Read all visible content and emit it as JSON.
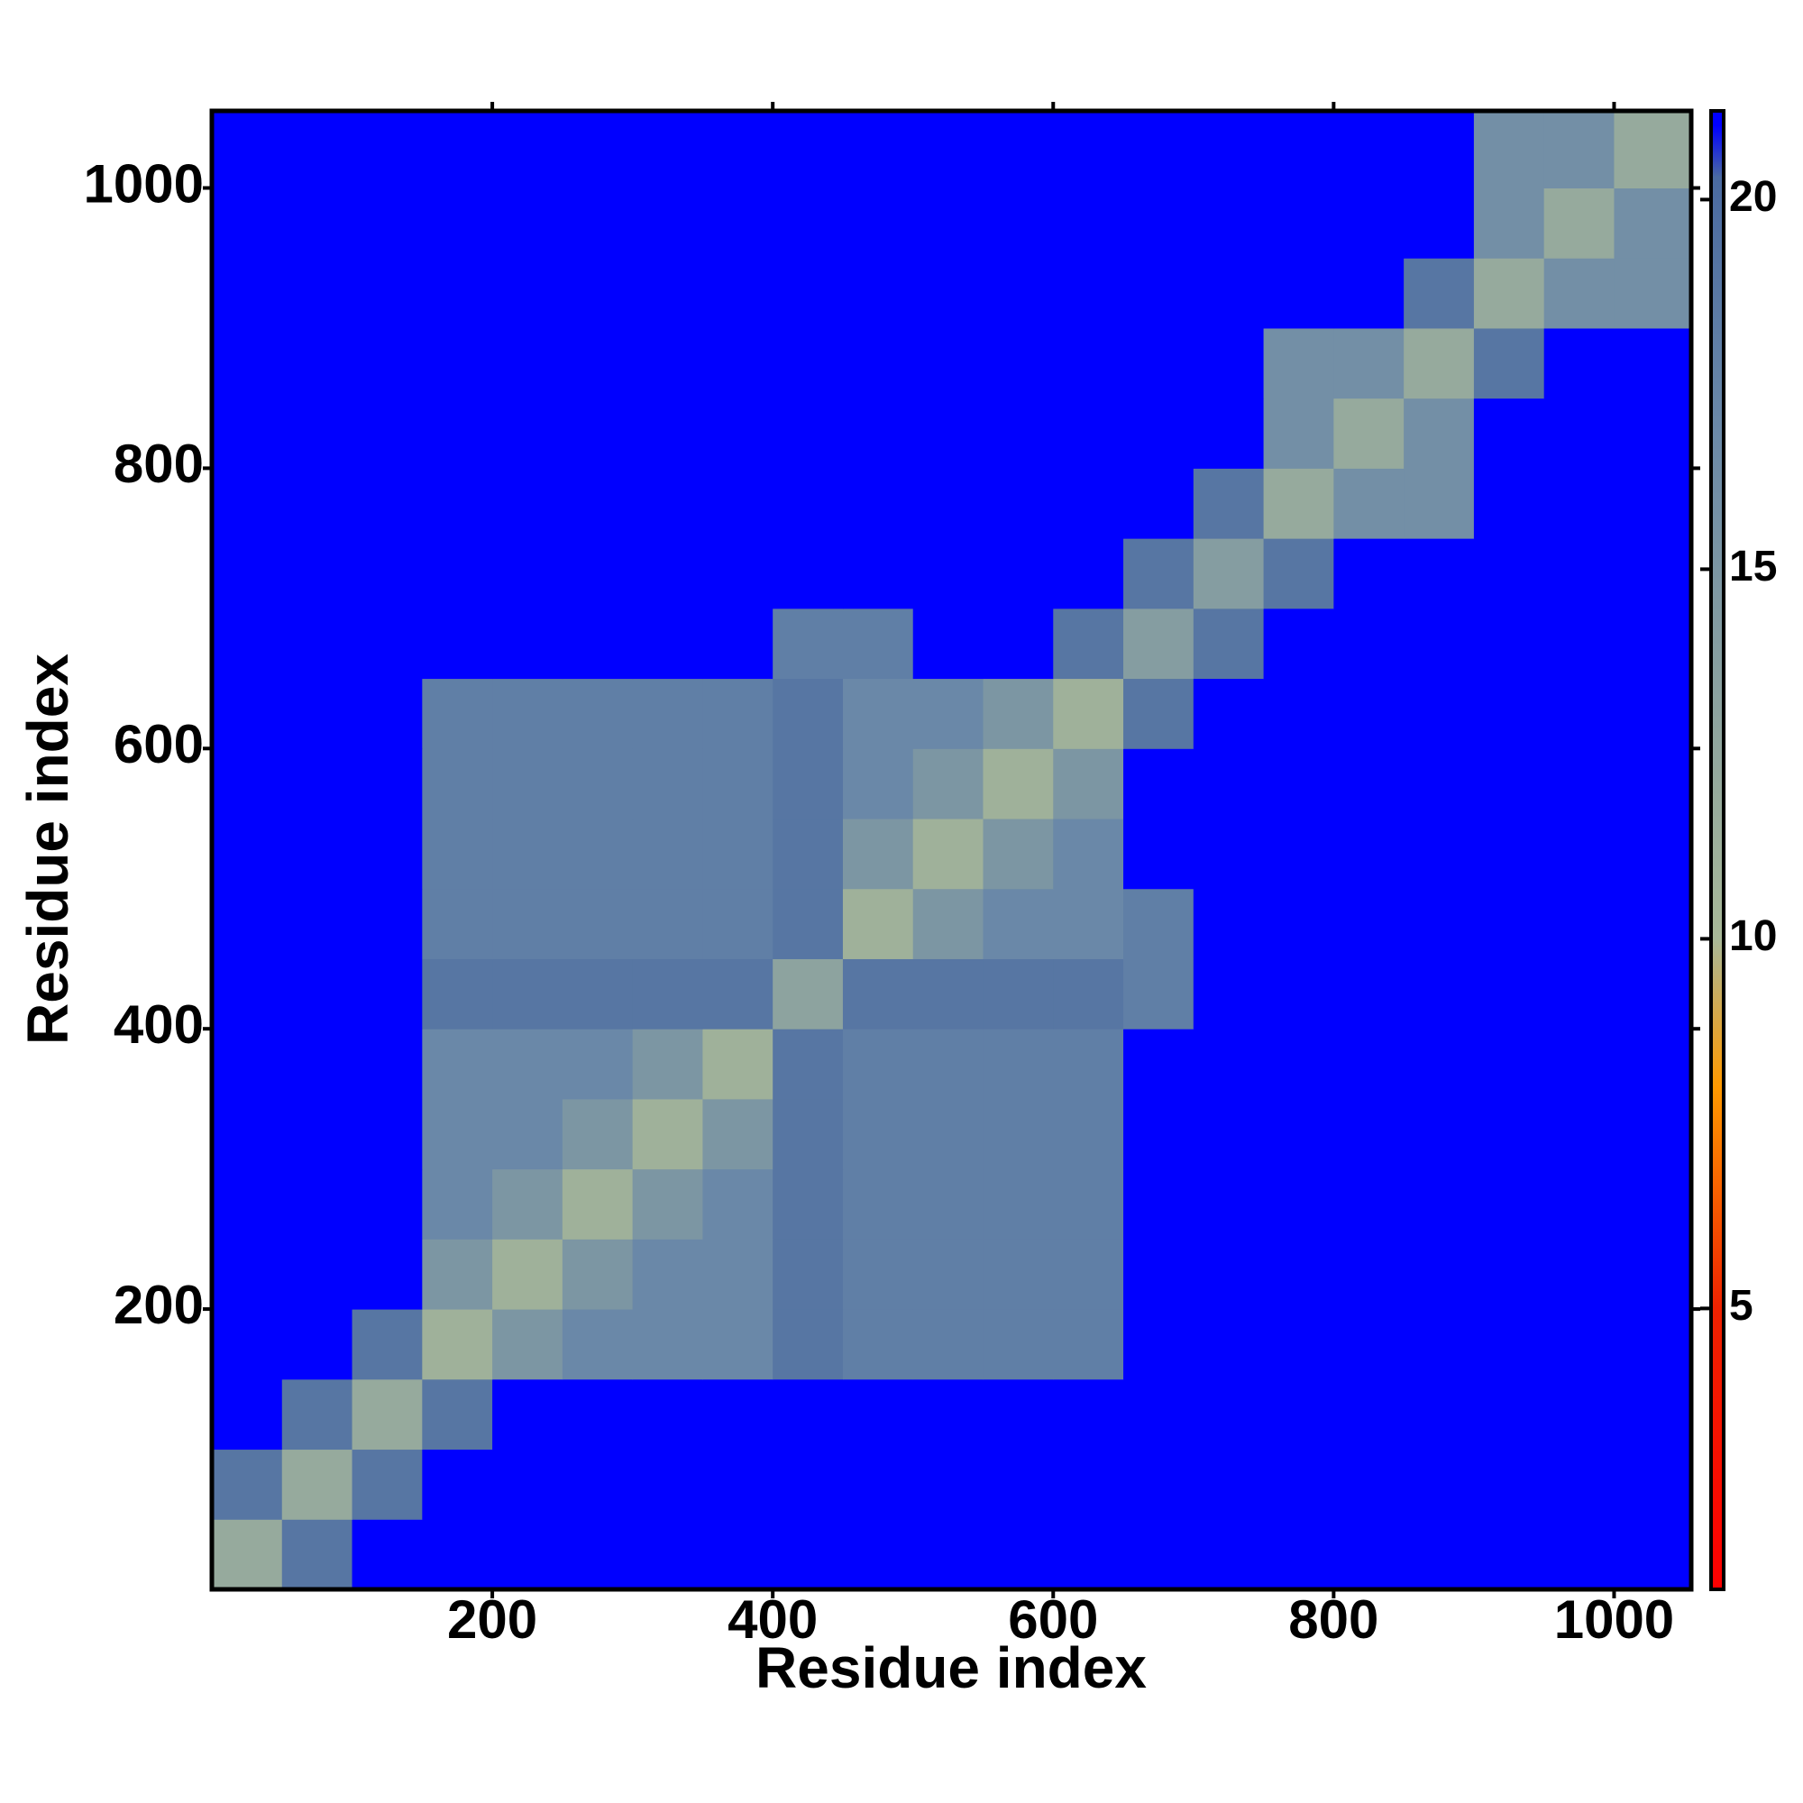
{
  "chart_data": {
    "type": "heatmap",
    "x_label": "Residue index",
    "y_label": "Residue index",
    "bins": [
      0,
      50,
      100,
      150,
      200,
      250,
      300,
      350,
      400,
      450,
      500,
      550,
      600,
      650,
      700,
      750,
      800,
      850,
      900,
      950,
      1000,
      1055
    ],
    "xlim": [
      0,
      1055
    ],
    "ylim": [
      0,
      1055
    ],
    "xticks": [
      200,
      400,
      600,
      800,
      1000
    ],
    "yticks": [
      200,
      400,
      600,
      800,
      1000
    ],
    "colorscale": [
      [
        1.2,
        "#ff0000"
      ],
      [
        5,
        "#ee2200"
      ],
      [
        8,
        "#ff9900"
      ],
      [
        10,
        "#a8b898"
      ],
      [
        17,
        "#6a88a8"
      ],
      [
        20.3,
        "#4a6aa0"
      ],
      [
        21,
        "#0000ff"
      ]
    ],
    "colorbar_lim": [
      1.2,
      21.2
    ],
    "colorbar_ticks": [
      5,
      10,
      15,
      20
    ],
    "z": [
      [
        12,
        19,
        21,
        21,
        21,
        21,
        21,
        21,
        21,
        21,
        21,
        21,
        21,
        21,
        21,
        21,
        21,
        21,
        21,
        21,
        21
      ],
      [
        19,
        12,
        19,
        21,
        21,
        21,
        21,
        21,
        21,
        21,
        21,
        21,
        21,
        21,
        21,
        21,
        21,
        21,
        21,
        21,
        21
      ],
      [
        21,
        19,
        12,
        19,
        21,
        21,
        21,
        21,
        21,
        21,
        21,
        21,
        21,
        21,
        21,
        21,
        21,
        21,
        21,
        21,
        21
      ],
      [
        21,
        21,
        19,
        11,
        15,
        17,
        17,
        17,
        19,
        18,
        18,
        18,
        18,
        21,
        21,
        21,
        21,
        21,
        21,
        21,
        21
      ],
      [
        21,
        21,
        21,
        15,
        11,
        15,
        17,
        17,
        19,
        18,
        18,
        18,
        18,
        21,
        21,
        21,
        21,
        21,
        21,
        21,
        21
      ],
      [
        21,
        21,
        21,
        17,
        15,
        11,
        15,
        17,
        19,
        18,
        18,
        18,
        18,
        21,
        21,
        21,
        21,
        21,
        21,
        21,
        21
      ],
      [
        21,
        21,
        21,
        17,
        17,
        15,
        11,
        15,
        19,
        18,
        18,
        18,
        18,
        21,
        21,
        21,
        21,
        21,
        21,
        21,
        21
      ],
      [
        21,
        21,
        21,
        17,
        17,
        17,
        15,
        11,
        19,
        18,
        18,
        18,
        18,
        21,
        21,
        21,
        21,
        21,
        21,
        21,
        21
      ],
      [
        21,
        21,
        21,
        19,
        19,
        19,
        19,
        19,
        13,
        19,
        19,
        19,
        19,
        18,
        21,
        21,
        21,
        21,
        21,
        21,
        21
      ],
      [
        21,
        21,
        21,
        18,
        18,
        18,
        18,
        18,
        19,
        11,
        15,
        17,
        17,
        18,
        21,
        21,
        21,
        21,
        21,
        21,
        21
      ],
      [
        21,
        21,
        21,
        18,
        18,
        18,
        18,
        18,
        19,
        15,
        11,
        15,
        17,
        21,
        21,
        21,
        21,
        21,
        21,
        21,
        21
      ],
      [
        21,
        21,
        21,
        18,
        18,
        18,
        18,
        18,
        19,
        17,
        15,
        11,
        15,
        21,
        21,
        21,
        21,
        21,
        21,
        21,
        21
      ],
      [
        21,
        21,
        21,
        18,
        18,
        18,
        18,
        18,
        19,
        17,
        17,
        15,
        11,
        19,
        21,
        21,
        21,
        21,
        21,
        21,
        21
      ],
      [
        21,
        21,
        21,
        21,
        21,
        21,
        21,
        21,
        18,
        18,
        21,
        21,
        19,
        14,
        19,
        21,
        21,
        21,
        21,
        21,
        21
      ],
      [
        21,
        21,
        21,
        21,
        21,
        21,
        21,
        21,
        21,
        21,
        21,
        21,
        21,
        19,
        14,
        19,
        21,
        21,
        21,
        21,
        21
      ],
      [
        21,
        21,
        21,
        21,
        21,
        21,
        21,
        21,
        21,
        21,
        21,
        21,
        21,
        21,
        19,
        12,
        16,
        16,
        21,
        21,
        21
      ],
      [
        21,
        21,
        21,
        21,
        21,
        21,
        21,
        21,
        21,
        21,
        21,
        21,
        21,
        21,
        21,
        16,
        12,
        16,
        21,
        21,
        21
      ],
      [
        21,
        21,
        21,
        21,
        21,
        21,
        21,
        21,
        21,
        21,
        21,
        21,
        21,
        21,
        21,
        16,
        16,
        12,
        19,
        21,
        21
      ],
      [
        21,
        21,
        21,
        21,
        21,
        21,
        21,
        21,
        21,
        21,
        21,
        21,
        21,
        21,
        21,
        21,
        21,
        19,
        12,
        16,
        16
      ],
      [
        21,
        21,
        21,
        21,
        21,
        21,
        21,
        21,
        21,
        21,
        21,
        21,
        21,
        21,
        21,
        21,
        21,
        21,
        16,
        12,
        16
      ],
      [
        21,
        21,
        21,
        21,
        21,
        21,
        21,
        21,
        21,
        21,
        21,
        21,
        21,
        21,
        21,
        21,
        21,
        21,
        16,
        16,
        12
      ]
    ]
  }
}
